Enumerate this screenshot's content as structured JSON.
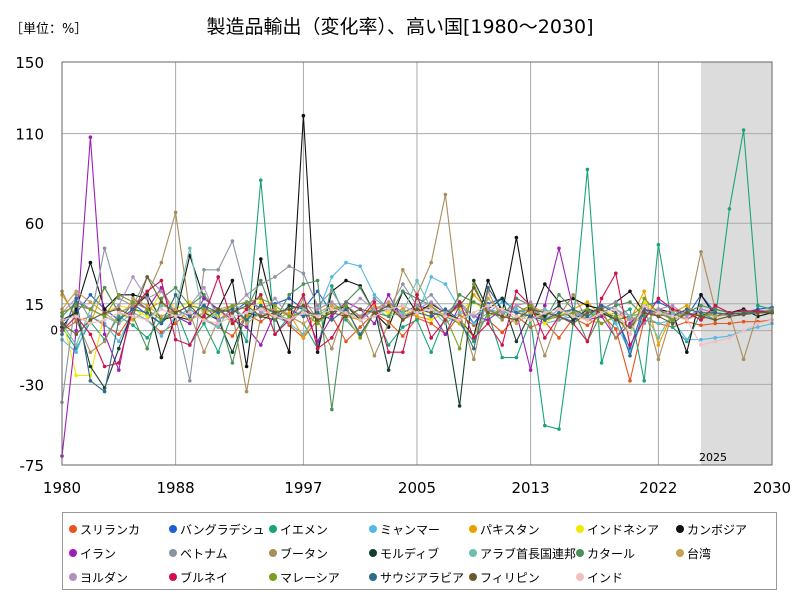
{
  "unit_label": "［単位：%］",
  "title": "製造品輸出（変化率）、高い国[1980～2030]",
  "chart_data": {
    "type": "line",
    "ylim": [
      -75,
      150
    ],
    "xlim": [
      1980,
      2030
    ],
    "y_ticks": [
      -75,
      -30,
      0,
      15,
      60,
      110,
      150
    ],
    "y_tick_labels": [
      "-75",
      "-30",
      "0",
      "15",
      "60",
      "110",
      "150"
    ],
    "x_ticks": [
      1980,
      1988,
      1997,
      2005,
      2013,
      2022,
      2030
    ],
    "x_tick_labels": [
      "1980",
      "1988",
      "1997",
      "2005",
      "2013",
      "2022",
      "2030"
    ],
    "forecast_start": 2025,
    "forecast_label": "2025",
    "grid": true,
    "legend_position": "bottom",
    "series": [
      {
        "name": "スリランカ",
        "color": "#e8541c",
        "values": [
          0,
          5,
          8,
          3,
          -2,
          10,
          6,
          -1,
          4,
          12,
          7,
          2,
          -3,
          9,
          5,
          11,
          3,
          -4,
          6,
          8,
          -6,
          2,
          10,
          5,
          -3,
          7,
          4,
          -2,
          9,
          3,
          6,
          -1,
          8,
          2,
          5,
          -4,
          7,
          3,
          9,
          1,
          -28,
          6,
          4,
          2,
          5,
          3,
          4,
          4,
          5,
          5,
          6
        ]
      },
      {
        "name": "バングラデシュ",
        "color": "#1f5fd6",
        "values": [
          5,
          10,
          20,
          12,
          6,
          15,
          9,
          4,
          12,
          8,
          14,
          6,
          10,
          16,
          13,
          15,
          18,
          12,
          22,
          10,
          14,
          8,
          12,
          16,
          10,
          14,
          12,
          8,
          16,
          4,
          15,
          18,
          10,
          12,
          6,
          8,
          5,
          12,
          10,
          8,
          -10,
          14,
          16,
          12,
          8,
          20,
          10,
          9,
          10,
          12,
          13
        ]
      },
      {
        "name": "イエメン",
        "color": "#1aa37a",
        "values": [
          2,
          -10,
          5,
          -5,
          8,
          3,
          -4,
          6,
          12,
          -8,
          4,
          -12,
          10,
          -6,
          84,
          -2,
          8,
          4,
          -10,
          25,
          6,
          -3,
          10,
          -8,
          2,
          6,
          -12,
          8,
          4,
          -6,
          10,
          -15,
          -15,
          6,
          -53,
          -55,
          4,
          90,
          -18,
          8,
          12,
          -28,
          48,
          2,
          -6,
          10,
          6,
          68,
          112,
          14,
          12
        ]
      },
      {
        "name": "ミャンマー",
        "color": "#55b8e8",
        "values": [
          -5,
          -12,
          8,
          4,
          -6,
          10,
          6,
          -3,
          8,
          12,
          6,
          2,
          14,
          6,
          10,
          8,
          4,
          -2,
          10,
          30,
          38,
          36,
          20,
          12,
          10,
          8,
          30,
          26,
          12,
          4,
          10,
          16,
          12,
          8,
          4,
          6,
          10,
          8,
          12,
          4,
          -12,
          8,
          4,
          6,
          -5,
          -5,
          -4,
          -3,
          0,
          2,
          4
        ]
      },
      {
        "name": "パキスタン",
        "color": "#e8a200",
        "values": [
          20,
          8,
          4,
          24,
          10,
          6,
          12,
          16,
          8,
          10,
          6,
          12,
          4,
          8,
          14,
          6,
          10,
          -4,
          12,
          16,
          8,
          6,
          14,
          10,
          12,
          8,
          6,
          10,
          4,
          20,
          12,
          8,
          6,
          14,
          10,
          8,
          12,
          16,
          8,
          10,
          6,
          22,
          -8,
          10,
          14,
          8,
          10,
          8,
          9,
          10,
          10
        ]
      },
      {
        "name": "インドネシア",
        "color": "#f0e800",
        "values": [
          8,
          -25,
          -25,
          10,
          14,
          12,
          8,
          22,
          12,
          16,
          10,
          8,
          14,
          12,
          16,
          10,
          6,
          12,
          8,
          10,
          14,
          6,
          12,
          10,
          8,
          14,
          6,
          10,
          12,
          16,
          10,
          8,
          6,
          12,
          4,
          10,
          8,
          6,
          12,
          8,
          6,
          16,
          10,
          8,
          12,
          10,
          8,
          9,
          10,
          10,
          10
        ]
      },
      {
        "name": "カンボジア",
        "color": "#111111",
        "values": [
          2,
          12,
          38,
          12,
          20,
          20,
          18,
          -15,
          8,
          42,
          18,
          12,
          28,
          -20,
          40,
          8,
          -12,
          120,
          -12,
          22,
          28,
          25,
          10,
          2,
          22,
          10,
          15,
          10,
          6,
          -3,
          28,
          10,
          52,
          6,
          26,
          16,
          18,
          14,
          12,
          16,
          22,
          10,
          12,
          10,
          -12,
          20,
          8,
          10,
          12,
          8,
          10
        ]
      },
      {
        "name": "イラン",
        "color": "#9c1fb8",
        "values": [
          -70,
          0,
          108,
          -2,
          -22,
          18,
          12,
          24,
          8,
          4,
          18,
          12,
          6,
          2,
          -8,
          10,
          4,
          12,
          -6,
          8,
          16,
          12,
          4,
          20,
          6,
          12,
          10,
          -2,
          14,
          8,
          6,
          12,
          10,
          -22,
          14,
          46,
          12,
          6,
          8,
          -4,
          4,
          12,
          8,
          10,
          6,
          12,
          10,
          9,
          10,
          11,
          11
        ]
      },
      {
        "name": "ベトナム",
        "color": "#8a94a0",
        "values": [
          -40,
          20,
          6,
          46,
          18,
          14,
          30,
          22,
          8,
          -28,
          34,
          34,
          50,
          20,
          26,
          30,
          36,
          32,
          14,
          22,
          10,
          8,
          18,
          12,
          26,
          14,
          20,
          10,
          16,
          8,
          12,
          6,
          14,
          10,
          12,
          6,
          8,
          10,
          12,
          16,
          8,
          4,
          12,
          8,
          10,
          6,
          10,
          8,
          9,
          10,
          10
        ]
      },
      {
        "name": "ブータン",
        "color": "#a88e5a",
        "values": [
          22,
          6,
          -12,
          -6,
          10,
          14,
          20,
          38,
          66,
          10,
          -12,
          6,
          10,
          -34,
          8,
          12,
          4,
          18,
          6,
          -10,
          14,
          8,
          -14,
          4,
          34,
          20,
          38,
          76,
          10,
          -16,
          22,
          6,
          14,
          10,
          -14,
          8,
          20,
          6,
          12,
          -4,
          8,
          14,
          -16,
          10,
          6,
          44,
          12,
          10,
          -16,
          10,
          12
        ]
      },
      {
        "name": "モルディブ",
        "color": "#123f2e",
        "values": [
          6,
          10,
          -20,
          -32,
          -10,
          12,
          20,
          6,
          8,
          6,
          10,
          6,
          -12,
          10,
          8,
          6,
          14,
          12,
          6,
          10,
          14,
          6,
          12,
          -22,
          8,
          10,
          14,
          6,
          -42,
          28,
          12,
          18,
          -6,
          10,
          8,
          14,
          6,
          12,
          10,
          6,
          8,
          10,
          12,
          6,
          10,
          8,
          12,
          10,
          9,
          11,
          10
        ]
      },
      {
        "name": "アラブ首長国連邦",
        "color": "#6fbfb0",
        "values": [
          4,
          -8,
          12,
          8,
          4,
          10,
          6,
          14,
          12,
          46,
          6,
          10,
          14,
          12,
          8,
          10,
          6,
          12,
          8,
          14,
          10,
          6,
          12,
          8,
          10,
          28,
          12,
          4,
          10,
          8,
          14,
          12,
          6,
          10,
          12,
          8,
          10,
          6,
          14,
          12,
          8,
          10,
          -4,
          10,
          8,
          12,
          10,
          9,
          10,
          10,
          10
        ]
      },
      {
        "name": "カタール",
        "color": "#4b8f5a",
        "values": [
          8,
          16,
          12,
          24,
          10,
          8,
          -10,
          18,
          24,
          14,
          20,
          10,
          -18,
          12,
          28,
          6,
          20,
          26,
          28,
          -44,
          16,
          24,
          10,
          8,
          22,
          18,
          14,
          6,
          20,
          16,
          12,
          8,
          18,
          14,
          6,
          20,
          12,
          -6,
          10,
          14,
          16,
          8,
          12,
          6,
          10,
          14,
          12,
          10,
          11,
          10,
          11
        ]
      },
      {
        "name": "台湾",
        "color": "#c8a050",
        "values": [
          12,
          22,
          16,
          10,
          4,
          18,
          14,
          8,
          12,
          6,
          10,
          12,
          14,
          4,
          10,
          12,
          8,
          4,
          10,
          14,
          8,
          -4,
          12,
          16,
          6,
          10,
          14,
          8,
          6,
          -4,
          18,
          10,
          4,
          10,
          6,
          8,
          12,
          6,
          4,
          8,
          2,
          14,
          8,
          12,
          6,
          10,
          8,
          9,
          10,
          10,
          10
        ]
      },
      {
        "name": "ヨルダン",
        "color": "#b090c0",
        "values": [
          10,
          18,
          12,
          8,
          14,
          30,
          18,
          22,
          10,
          14,
          24,
          6,
          12,
          20,
          10,
          18,
          8,
          14,
          12,
          16,
          10,
          18,
          12,
          14,
          8,
          12,
          16,
          10,
          14,
          8,
          12,
          10,
          14,
          16,
          6,
          12,
          10,
          8,
          14,
          12,
          6,
          10,
          12,
          14,
          8,
          12,
          10,
          9,
          10,
          10,
          10
        ]
      },
      {
        "name": "ブルネイ",
        "color": "#d0104a",
        "values": [
          0,
          8,
          -2,
          -20,
          -18,
          12,
          22,
          28,
          -5,
          -8,
          8,
          30,
          4,
          12,
          20,
          -2,
          6,
          20,
          -10,
          -4,
          10,
          6,
          16,
          -12,
          -12,
          20,
          -4,
          6,
          16,
          -4,
          4,
          -8,
          22,
          14,
          -4,
          8,
          4,
          -6,
          18,
          32,
          -8,
          6,
          18,
          12,
          10,
          6,
          14,
          10,
          11,
          11,
          10
        ]
      },
      {
        "name": "マレーシア",
        "color": "#7a9e20",
        "values": [
          10,
          14,
          12,
          8,
          20,
          16,
          12,
          6,
          10,
          14,
          12,
          10,
          14,
          16,
          18,
          14,
          8,
          10,
          4,
          12,
          14,
          -4,
          10,
          12,
          14,
          10,
          12,
          8,
          -10,
          26,
          8,
          12,
          10,
          14,
          6,
          8,
          10,
          12,
          4,
          8,
          -2,
          18,
          10,
          6,
          10,
          8,
          10,
          9,
          10,
          10,
          10
        ]
      },
      {
        "name": "サウジアラビア",
        "color": "#2f6b86",
        "values": [
          -2,
          18,
          -28,
          -34,
          6,
          12,
          10,
          4,
          20,
          8,
          14,
          10,
          12,
          6,
          14,
          10,
          12,
          8,
          10,
          6,
          12,
          -2,
          10,
          12,
          14,
          10,
          8,
          12,
          6,
          -10,
          24,
          12,
          10,
          8,
          6,
          10,
          12,
          8,
          14,
          10,
          -14,
          12,
          10,
          8,
          12,
          10,
          10,
          9,
          10,
          10,
          10
        ]
      },
      {
        "name": "フィリピン",
        "color": "#6b5a2e",
        "values": [
          4,
          -2,
          6,
          10,
          12,
          8,
          30,
          16,
          10,
          14,
          6,
          12,
          10,
          14,
          8,
          10,
          12,
          14,
          6,
          10,
          8,
          12,
          10,
          14,
          6,
          12,
          10,
          8,
          14,
          24,
          10,
          8,
          6,
          12,
          10,
          8,
          4,
          10,
          12,
          6,
          2,
          10,
          8,
          4,
          10,
          8,
          6,
          8,
          9,
          10,
          10
        ]
      },
      {
        "name": "インド",
        "color": "#f0c0c0",
        "values": [
          6,
          8,
          4,
          6,
          10,
          8,
          6,
          12,
          8,
          10,
          6,
          4,
          8,
          10,
          12,
          8,
          6,
          10,
          8,
          12,
          10,
          6,
          8,
          12,
          14,
          10,
          12,
          8,
          6,
          10,
          14,
          12,
          8,
          6,
          10,
          12,
          8,
          6,
          10,
          12,
          -2,
          14,
          10,
          8,
          6,
          -8,
          -6,
          -4,
          0,
          4,
          6
        ]
      }
    ]
  }
}
